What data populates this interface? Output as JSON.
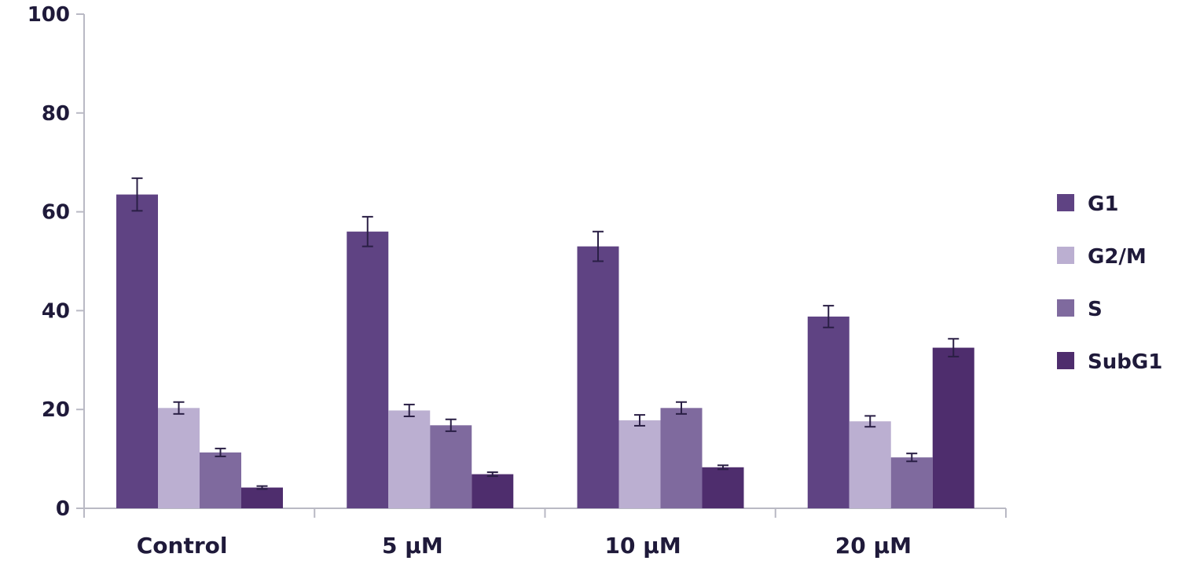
{
  "chart_data": {
    "type": "bar",
    "title": "",
    "xlabel": "",
    "ylabel": "",
    "ylim": [
      0,
      100
    ],
    "yticks": [
      0,
      20,
      40,
      60,
      80,
      100
    ],
    "grid": false,
    "legend_position": "right",
    "categories": [
      "Control",
      "5 µM",
      "10 µM",
      "20 µM"
    ],
    "series": [
      {
        "name": "G1",
        "color": "#5f4383",
        "values": [
          63.5,
          56,
          53,
          38.8
        ],
        "errors": [
          3.3,
          3.0,
          3.0,
          2.2
        ]
      },
      {
        "name": "G2/M",
        "color": "#bbafd1",
        "values": [
          20.3,
          19.8,
          17.8,
          17.6
        ],
        "errors": [
          1.2,
          1.2,
          1.1,
          1.1
        ]
      },
      {
        "name": "S",
        "color": "#7f6a9e",
        "values": [
          11.3,
          16.8,
          20.3,
          10.3
        ],
        "errors": [
          0.8,
          1.2,
          1.2,
          0.8
        ]
      },
      {
        "name": "SubG1",
        "color": "#4e2d6d",
        "values": [
          4.2,
          6.9,
          8.3,
          32.5
        ],
        "errors": [
          0.3,
          0.4,
          0.4,
          1.8
        ]
      }
    ]
  }
}
